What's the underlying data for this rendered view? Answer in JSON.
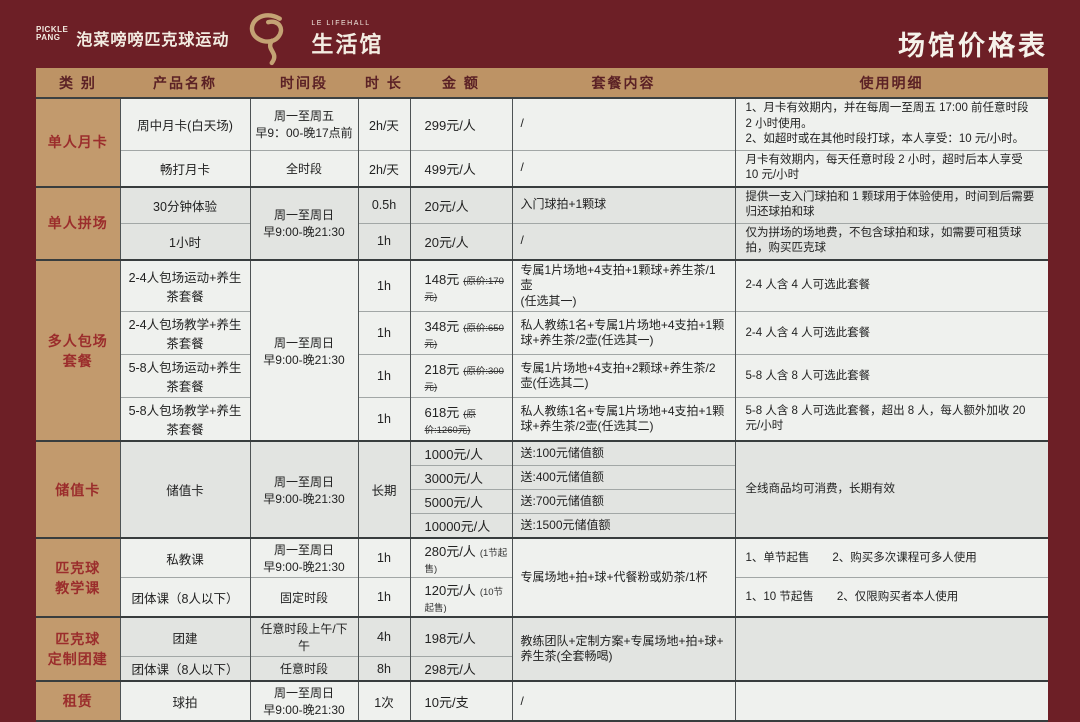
{
  "page": {
    "title": "场馆价格表"
  },
  "logo": {
    "badge_line1": "PICKLE",
    "badge_line2": "PANG",
    "brand_cn": "泡菜嗙嗙匹克球运动",
    "sub_en": "LE LIFEHALL",
    "sub_cn": "生活馆",
    "swirl_color": "#c4a274"
  },
  "colors": {
    "background": "#6d1f26",
    "header_band": "#bd9365",
    "category_band": "#c29a6d",
    "category_text": "#9b2d2c",
    "cell_light": "#eff1ee",
    "cell_dark": "#e2e4e1",
    "title_text": "#f6f2ea"
  },
  "table": {
    "headers": [
      "类 别",
      "产品名称",
      "时间段",
      "时 长",
      "金 额",
      "套餐内容",
      "使用明细"
    ],
    "rows": [
      {
        "g": "ga",
        "gs": true,
        "cells": [
          {
            "c": "cat",
            "t": "单人月卡",
            "rs": 2
          },
          {
            "c": "prod",
            "t": "周中月卡(白天场)"
          },
          {
            "c": "time",
            "t": "周一至周五\n早9：00-晚17点前"
          },
          {
            "c": "dur",
            "t": "2h/天"
          },
          {
            "c": "price",
            "t": "299元/人"
          },
          {
            "c": "pkg",
            "t": "/"
          },
          {
            "c": "det",
            "t": "1、月卡有效期内，并在每周一至周五 17:00 前任意时段 2 小时使用。\n2、如超时或在其他时段打球，本人享受：10 元/小时。"
          }
        ]
      },
      {
        "g": "ga",
        "cells": [
          {
            "c": "prod",
            "t": "畅打月卡"
          },
          {
            "c": "time",
            "t": "全时段"
          },
          {
            "c": "dur",
            "t": "2h/天"
          },
          {
            "c": "price",
            "t": "499元/人"
          },
          {
            "c": "pkg",
            "t": "/"
          },
          {
            "c": "det",
            "t": "月卡有效期内，每天任意时段 2 小时，超时后本人享受 10 元/小时"
          }
        ]
      },
      {
        "g": "gb",
        "gs": true,
        "cells": [
          {
            "c": "cat",
            "t": "单人拼场",
            "rs": 2
          },
          {
            "c": "prod",
            "t": "30分钟体验"
          },
          {
            "c": "time",
            "t": "周一至周日\n早9:00-晚21:30",
            "rs": 2
          },
          {
            "c": "dur",
            "t": "0.5h"
          },
          {
            "c": "price",
            "t": "20元/人"
          },
          {
            "c": "pkg",
            "t": "入门球拍+1颗球"
          },
          {
            "c": "det",
            "t": "提供一支入门球拍和 1 颗球用于体验使用，时间到后需要归还球拍和球"
          }
        ]
      },
      {
        "g": "gb",
        "cells": [
          {
            "c": "prod",
            "t": "1小时"
          },
          {
            "c": "dur",
            "t": "1h"
          },
          {
            "c": "price",
            "t": "20元/人"
          },
          {
            "c": "pkg",
            "t": "/"
          },
          {
            "c": "det",
            "t": "仅为拼场的场地费，不包含球拍和球，如需要可租赁球拍，购买匹克球"
          }
        ]
      },
      {
        "g": "ga",
        "gs": true,
        "cells": [
          {
            "c": "cat",
            "t": "多人包场\n套餐",
            "rs": 4
          },
          {
            "c": "prod",
            "t": "2-4人包场运动+养生茶套餐"
          },
          {
            "c": "time",
            "t": "周一至周日\n早9:00-晚21:30",
            "rs": 4
          },
          {
            "c": "dur",
            "t": "1h"
          },
          {
            "c": "price",
            "t": "148元",
            "note": "(原价:170元)"
          },
          {
            "c": "pkg",
            "t": "专属1片场地+4支拍+1颗球+养生茶/1壶\n(任选其一)"
          },
          {
            "c": "det",
            "t": "2-4 人含 4 人可选此套餐"
          }
        ]
      },
      {
        "g": "ga",
        "cells": [
          {
            "c": "prod",
            "t": "2-4人包场教学+养生茶套餐"
          },
          {
            "c": "dur",
            "t": "1h"
          },
          {
            "c": "price",
            "t": "348元",
            "note": "(原价:650元)"
          },
          {
            "c": "pkg",
            "t": "私人教练1名+专属1片场地+4支拍+1颗球+养生茶/2壶(任选其一)"
          },
          {
            "c": "det",
            "t": "2-4 人含 4 人可选此套餐"
          }
        ]
      },
      {
        "g": "ga",
        "cells": [
          {
            "c": "prod",
            "t": "5-8人包场运动+养生茶套餐"
          },
          {
            "c": "dur",
            "t": "1h"
          },
          {
            "c": "price",
            "t": "218元",
            "note": "(原价:300元)"
          },
          {
            "c": "pkg",
            "t": "专属1片场地+4支拍+2颗球+养生茶/2壶(任选其二)"
          },
          {
            "c": "det",
            "t": "5-8 人含 8 人可选此套餐"
          }
        ]
      },
      {
        "g": "ga",
        "cells": [
          {
            "c": "prod",
            "t": "5-8人包场教学+养生茶套餐"
          },
          {
            "c": "dur",
            "t": "1h"
          },
          {
            "c": "price",
            "t": "618元",
            "note": "(原价:1260元)"
          },
          {
            "c": "pkg",
            "t": "私人教练1名+专属1片场地+4支拍+1颗球+养生茶/2壶(任选其二)"
          },
          {
            "c": "det",
            "t": "5-8 人含 8 人可选此套餐，超出 8 人，每人额外加收 20 元/小时"
          }
        ]
      },
      {
        "g": "gb",
        "gs": true,
        "cells": [
          {
            "c": "cat",
            "t": "储值卡",
            "rs": 4
          },
          {
            "c": "prod",
            "t": "储值卡",
            "rs": 4
          },
          {
            "c": "time",
            "t": "周一至周日\n早9:00-晚21:30",
            "rs": 4
          },
          {
            "c": "dur",
            "t": "长期",
            "rs": 4
          },
          {
            "c": "price",
            "t": "1000元/人"
          },
          {
            "c": "pkg",
            "t": "送:100元储值额"
          },
          {
            "c": "det",
            "t": "全线商品均可消费，长期有效",
            "rs": 4
          }
        ]
      },
      {
        "g": "gb",
        "cells": [
          {
            "c": "price",
            "t": "3000元/人"
          },
          {
            "c": "pkg",
            "t": "送:400元储值额"
          }
        ]
      },
      {
        "g": "gb",
        "cells": [
          {
            "c": "price",
            "t": "5000元/人"
          },
          {
            "c": "pkg",
            "t": "送:700元储值额"
          }
        ]
      },
      {
        "g": "gb",
        "cells": [
          {
            "c": "price",
            "t": "10000元/人"
          },
          {
            "c": "pkg",
            "t": "送:1500元储值额"
          }
        ]
      },
      {
        "g": "ga",
        "gs": true,
        "cells": [
          {
            "c": "cat",
            "t": "匹克球\n教学课",
            "rs": 2
          },
          {
            "c": "prod",
            "t": "私教课"
          },
          {
            "c": "time",
            "t": "周一至周日\n早9:00-晚21:30"
          },
          {
            "c": "dur",
            "t": "1h"
          },
          {
            "c": "price",
            "t": "280元/人",
            "note": "(1节起售)",
            "ns": true
          },
          {
            "c": "pkg",
            "t": "专属场地+拍+球+代餐粉或奶茶/1杯",
            "rs": 2
          },
          {
            "c": "det",
            "t": "1、单节起售　　2、购买多次课程可多人使用"
          }
        ]
      },
      {
        "g": "ga",
        "cells": [
          {
            "c": "prod",
            "t": "团体课（8人以下）"
          },
          {
            "c": "time",
            "t": "固定时段"
          },
          {
            "c": "dur",
            "t": "1h"
          },
          {
            "c": "price",
            "t": "120元/人",
            "note": "(10节起售)",
            "ns": true
          },
          {
            "c": "det",
            "t": "1、10 节起售　　2、仅限购买者本人使用"
          }
        ]
      },
      {
        "g": "gb",
        "gs": true,
        "cells": [
          {
            "c": "cat",
            "t": "匹克球\n定制团建",
            "rs": 2
          },
          {
            "c": "prod",
            "t": "团建"
          },
          {
            "c": "time",
            "t": "任意时段上午/下午"
          },
          {
            "c": "dur",
            "t": "4h"
          },
          {
            "c": "price",
            "t": "198元/人"
          },
          {
            "c": "pkg",
            "t": "教练团队+定制方案+专属场地+拍+球+\n养生茶(全套畅喝)",
            "rs": 2
          },
          {
            "c": "det",
            "t": "",
            "rs": 2
          }
        ]
      },
      {
        "g": "gb",
        "cells": [
          {
            "c": "prod",
            "t": "团体课（8人以下）"
          },
          {
            "c": "time",
            "t": "任意时段"
          },
          {
            "c": "dur",
            "t": "8h"
          },
          {
            "c": "price",
            "t": "298元/人"
          }
        ]
      },
      {
        "g": "ga",
        "gs": true,
        "cells": [
          {
            "c": "cat",
            "t": "租赁"
          },
          {
            "c": "prod",
            "t": "球拍"
          },
          {
            "c": "time",
            "t": "周一至周日\n早9:00-晚21:30"
          },
          {
            "c": "dur",
            "t": "1次"
          },
          {
            "c": "price",
            "t": "10元/支"
          },
          {
            "c": "pkg",
            "t": "/"
          },
          {
            "c": "det",
            "t": ""
          }
        ]
      }
    ]
  }
}
